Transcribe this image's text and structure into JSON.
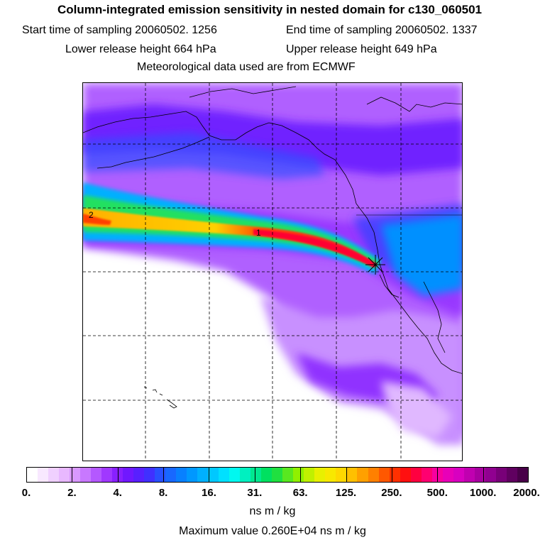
{
  "header": {
    "title": "Column-integrated emission sensitivity in nested domain for c130_060501",
    "start_time": "Start time of sampling 20060502.  1256",
    "end_time": "End time of sampling 20060502.  1337",
    "lower_release": "Lower release height  664 hPa",
    "upper_release": "Upper release height  649 hPa",
    "met_data": "Meteorological data used are from ECMWF"
  },
  "map": {
    "contour_labels": [
      "2",
      "1"
    ],
    "release_marker": "star-icon"
  },
  "colorbar": {
    "tick_labels": [
      "0.",
      "2.",
      "4.",
      "8.",
      "16.",
      "31.",
      "63.",
      "125.",
      "250.",
      "500.",
      "1000.",
      "2000."
    ],
    "units": "ns m / kg",
    "max_value": "Maximum value  0.260E+04 ns m / kg",
    "colors": [
      "#ffffff",
      "#f8e8ff",
      "#f0d0ff",
      "#e8b8ff",
      "#d898ff",
      "#c878ff",
      "#b458ff",
      "#a038ff",
      "#8820ff",
      "#7018ff",
      "#5820ff",
      "#4030ff",
      "#2850ff",
      "#1868ff",
      "#0880ff",
      "#0098ff",
      "#00b0ff",
      "#00c8ff",
      "#00e0ff",
      "#00f8f0",
      "#00f0c0",
      "#00e890",
      "#00e060",
      "#20e040",
      "#58e820",
      "#90f000",
      "#c0f000",
      "#e8f000",
      "#f8e800",
      "#ffd800",
      "#ffc000",
      "#ffa000",
      "#ff8000",
      "#ff5800",
      "#ff3000",
      "#ff1010",
      "#ff0040",
      "#ff0070",
      "#f800a0",
      "#e800b8",
      "#d800c0",
      "#c000b0",
      "#a800a0",
      "#900090",
      "#780078",
      "#600060",
      "#480048"
    ]
  }
}
